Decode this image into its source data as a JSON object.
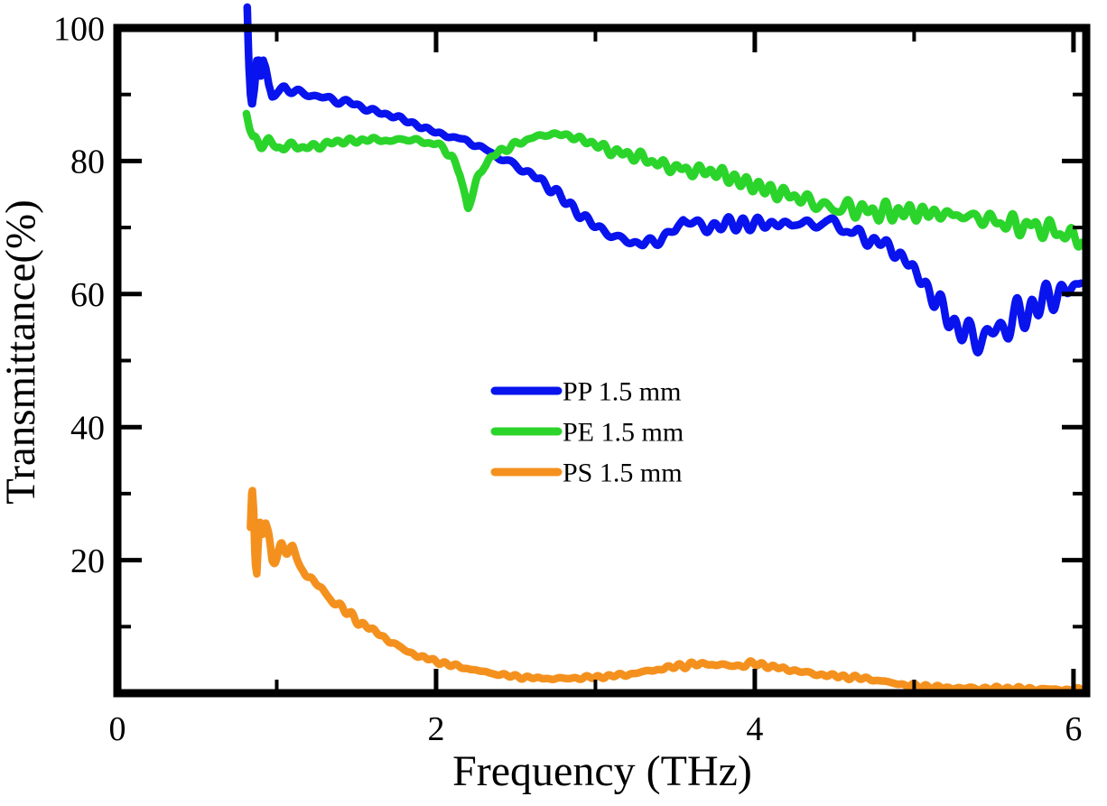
{
  "figure": {
    "background": "#ffffff",
    "text_color": "#000000"
  },
  "chart_data": {
    "type": "line",
    "title": "",
    "xlabel": "Frequency (THz)",
    "ylabel": "Transmittance(%)",
    "xlim": [
      0,
      6.08
    ],
    "ylim": [
      0,
      100
    ],
    "grid": false,
    "legend_position": "center",
    "x_major_ticks": [
      2,
      4,
      6
    ],
    "x_minor_ticks": [
      1,
      3,
      5
    ],
    "y_major_ticks": [
      20,
      40,
      60,
      80
    ],
    "y_minor_ticks": [
      10,
      30,
      50,
      70,
      90
    ],
    "x_tick_labels": [
      [
        0,
        "0"
      ],
      [
        2,
        "2"
      ],
      [
        4,
        "4"
      ],
      [
        6,
        "6"
      ]
    ],
    "y_tick_labels": [
      [
        20,
        "20"
      ],
      [
        40,
        "40"
      ],
      [
        60,
        "60"
      ],
      [
        80,
        "80"
      ],
      [
        100,
        "100"
      ]
    ],
    "series": [
      {
        "label": "PP 1.5 mm",
        "color": "#0813ee",
        "points": [
          [
            0.815,
            103.5
          ],
          [
            0.825,
            95
          ],
          [
            0.835,
            90
          ],
          [
            0.845,
            88
          ],
          [
            0.86,
            90.5
          ],
          [
            0.875,
            95
          ],
          [
            0.89,
            95.5
          ],
          [
            0.9,
            93
          ],
          [
            0.915,
            95.5
          ],
          [
            0.93,
            94
          ],
          [
            0.95,
            91
          ],
          [
            0.97,
            89.5
          ],
          [
            1.0,
            90.5
          ],
          [
            1.05,
            91
          ],
          [
            1.1,
            90.5
          ],
          [
            1.2,
            90
          ],
          [
            1.3,
            89.5
          ],
          [
            1.4,
            89
          ],
          [
            1.5,
            88.5
          ],
          [
            1.6,
            87.5
          ],
          [
            1.7,
            87
          ],
          [
            1.8,
            86.2
          ],
          [
            1.9,
            85.2
          ],
          [
            2.0,
            84.3
          ],
          [
            2.1,
            83.6
          ],
          [
            2.2,
            83
          ],
          [
            2.3,
            81.8
          ],
          [
            2.4,
            80.5
          ],
          [
            2.5,
            79.3
          ],
          [
            2.6,
            78
          ],
          [
            2.7,
            76.3
          ],
          [
            2.8,
            74.3
          ],
          [
            2.9,
            72
          ],
          [
            3.0,
            70.3
          ],
          [
            3.1,
            68.8
          ],
          [
            3.2,
            68
          ],
          [
            3.3,
            67.5
          ],
          [
            3.4,
            68.2
          ],
          [
            3.5,
            69.5
          ],
          [
            3.55,
            71.3
          ],
          [
            3.65,
            70.3
          ],
          [
            3.75,
            70
          ],
          [
            3.85,
            70.8
          ],
          [
            3.95,
            70.3
          ],
          [
            4.05,
            70.8
          ],
          [
            4.15,
            70.3
          ],
          [
            4.25,
            70.8
          ],
          [
            4.35,
            70.3
          ],
          [
            4.45,
            71
          ],
          [
            4.55,
            70
          ],
          [
            4.65,
            68.8
          ],
          [
            4.75,
            68
          ],
          [
            4.85,
            67
          ],
          [
            4.95,
            65
          ],
          [
            5.05,
            62
          ],
          [
            5.15,
            58.5
          ],
          [
            5.25,
            55.5
          ],
          [
            5.35,
            53.5
          ],
          [
            5.45,
            53.5
          ],
          [
            5.55,
            55
          ],
          [
            5.65,
            56.5
          ],
          [
            5.75,
            58
          ],
          [
            5.85,
            59.5
          ],
          [
            5.95,
            60.5
          ],
          [
            6.05,
            61.5
          ]
        ],
        "noise_band": [
          [
            0.815,
            0.8
          ],
          [
            2.0,
            0.8
          ],
          [
            3.0,
            1.0
          ],
          [
            3.8,
            1.5
          ],
          [
            4.4,
            2.2
          ],
          [
            4.8,
            2.8
          ],
          [
            5.2,
            3.8
          ],
          [
            5.6,
            4.0
          ],
          [
            6.05,
            3.8
          ]
        ]
      },
      {
        "label": "PE 1.5 mm",
        "color": "#2bd42b",
        "points": [
          [
            0.81,
            87
          ],
          [
            0.83,
            85
          ],
          [
            0.85,
            83.5
          ],
          [
            0.9,
            82.5
          ],
          [
            0.95,
            83
          ],
          [
            1.0,
            82
          ],
          [
            1.1,
            82.3
          ],
          [
            1.2,
            82
          ],
          [
            1.3,
            82.5
          ],
          [
            1.4,
            83
          ],
          [
            1.5,
            83
          ],
          [
            1.6,
            83.3
          ],
          [
            1.7,
            83
          ],
          [
            1.8,
            83.3
          ],
          [
            1.9,
            83
          ],
          [
            2.0,
            82.5
          ],
          [
            2.05,
            82
          ],
          [
            2.1,
            80.5
          ],
          [
            2.15,
            78
          ],
          [
            2.2,
            73
          ],
          [
            2.25,
            76.5
          ],
          [
            2.3,
            79.5
          ],
          [
            2.4,
            81.5
          ],
          [
            2.5,
            82.5
          ],
          [
            2.6,
            83.5
          ],
          [
            2.7,
            84
          ],
          [
            2.8,
            84
          ],
          [
            2.9,
            83.3
          ],
          [
            3.0,
            82.5
          ],
          [
            3.1,
            81.5
          ],
          [
            3.2,
            81
          ],
          [
            3.3,
            80.5
          ],
          [
            3.4,
            79.5
          ],
          [
            3.5,
            79
          ],
          [
            3.6,
            78.5
          ],
          [
            3.7,
            78.5
          ],
          [
            3.8,
            78
          ],
          [
            3.9,
            77
          ],
          [
            4.0,
            76.3
          ],
          [
            4.1,
            75.5
          ],
          [
            4.2,
            75
          ],
          [
            4.3,
            74.3
          ],
          [
            4.4,
            73.5
          ],
          [
            4.5,
            72.8
          ],
          [
            4.6,
            73
          ],
          [
            4.7,
            72.5
          ],
          [
            4.8,
            72.3
          ],
          [
            4.9,
            72.3
          ],
          [
            5.0,
            72.3
          ],
          [
            5.2,
            72
          ],
          [
            5.4,
            71.5
          ],
          [
            5.6,
            70.5
          ],
          [
            5.8,
            70
          ],
          [
            5.95,
            69
          ],
          [
            6.05,
            68
          ]
        ],
        "noise_band": [
          [
            0.81,
            1.0
          ],
          [
            2.0,
            0.8
          ],
          [
            3.0,
            1.0
          ],
          [
            4.0,
            1.8
          ],
          [
            4.6,
            2.4
          ],
          [
            5.2,
            2.8
          ],
          [
            6.05,
            3.0
          ]
        ]
      },
      {
        "label": "PS 1.5 mm",
        "color": "#f4911e",
        "points": [
          [
            0.835,
            25
          ],
          [
            0.845,
            31.5
          ],
          [
            0.855,
            28
          ],
          [
            0.865,
            20
          ],
          [
            0.875,
            18
          ],
          [
            0.885,
            23
          ],
          [
            0.895,
            25.5
          ],
          [
            0.91,
            24
          ],
          [
            0.93,
            25.5
          ],
          [
            0.95,
            23
          ],
          [
            0.97,
            20
          ],
          [
            1.0,
            21
          ],
          [
            1.03,
            22
          ],
          [
            1.07,
            21.5
          ],
          [
            1.1,
            21.5
          ],
          [
            1.15,
            19
          ],
          [
            1.2,
            17.5
          ],
          [
            1.25,
            16.5
          ],
          [
            1.3,
            15
          ],
          [
            1.35,
            14
          ],
          [
            1.4,
            13
          ],
          [
            1.45,
            12
          ],
          [
            1.5,
            11
          ],
          [
            1.6,
            9.5
          ],
          [
            1.7,
            8
          ],
          [
            1.8,
            6.5
          ],
          [
            1.9,
            5.5
          ],
          [
            2.0,
            4.8
          ],
          [
            2.1,
            4.2
          ],
          [
            2.2,
            3.7
          ],
          [
            2.3,
            3.2
          ],
          [
            2.4,
            2.8
          ],
          [
            2.5,
            2.5
          ],
          [
            2.6,
            2.3
          ],
          [
            2.7,
            2.2
          ],
          [
            2.8,
            2.2
          ],
          [
            2.9,
            2.3
          ],
          [
            3.0,
            2.4
          ],
          [
            3.1,
            2.6
          ],
          [
            3.2,
            2.8
          ],
          [
            3.3,
            3.2
          ],
          [
            3.4,
            3.6
          ],
          [
            3.5,
            4.0
          ],
          [
            3.6,
            4.3
          ],
          [
            3.7,
            4.4
          ],
          [
            3.8,
            4.2
          ],
          [
            3.9,
            4.1
          ],
          [
            4.0,
            4.5
          ],
          [
            4.1,
            4.0
          ],
          [
            4.2,
            3.6
          ],
          [
            4.3,
            3.2
          ],
          [
            4.4,
            2.8
          ],
          [
            4.5,
            2.6
          ],
          [
            4.6,
            2.4
          ],
          [
            4.7,
            2.2
          ],
          [
            4.8,
            1.8
          ],
          [
            4.9,
            1.4
          ],
          [
            5.0,
            1.1
          ],
          [
            5.2,
            0.8
          ],
          [
            5.4,
            0.7
          ],
          [
            5.6,
            0.7
          ],
          [
            5.8,
            0.6
          ],
          [
            6.0,
            0.5
          ],
          [
            6.05,
            0.5
          ]
        ],
        "noise_band": [
          [
            0.835,
            2.2
          ],
          [
            1.0,
            1.6
          ],
          [
            1.3,
            1.1
          ],
          [
            1.6,
            0.8
          ],
          [
            2.0,
            0.5
          ],
          [
            2.5,
            0.35
          ],
          [
            3.2,
            0.45
          ],
          [
            3.8,
            0.55
          ],
          [
            4.4,
            0.45
          ],
          [
            4.9,
            0.4
          ],
          [
            5.3,
            0.45
          ],
          [
            6.05,
            0.4
          ]
        ]
      }
    ]
  }
}
